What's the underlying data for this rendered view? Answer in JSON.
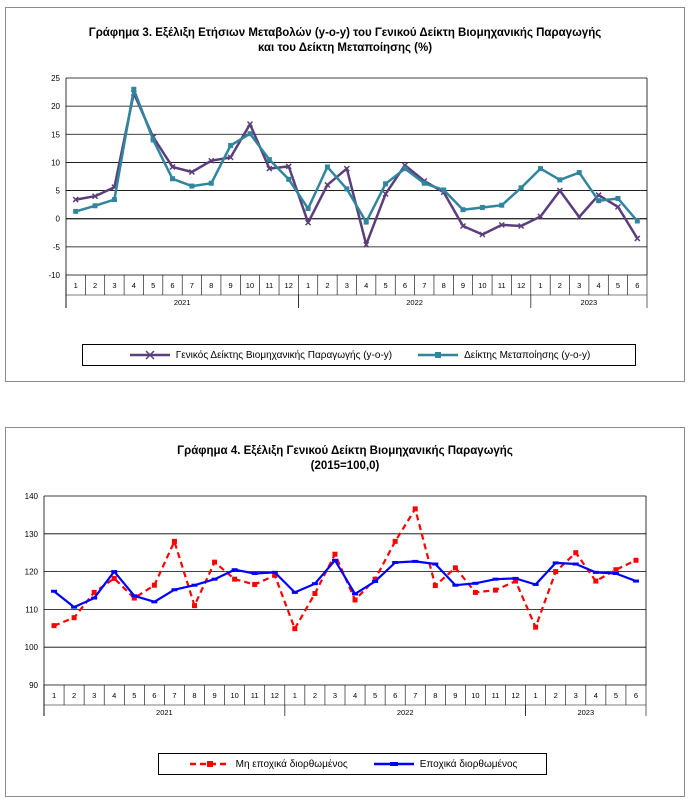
{
  "chart_data": [
    {
      "type": "line",
      "title": [
        "Γράφημα 3. Εξέλιξη Ετήσιων Μεταβολών (y-o-y) του Γενικού Δείκτη Βιομηχανικής Παραγωγής",
        "και του Δείκτη Μεταποίησης (%)"
      ],
      "categories": [
        "1",
        "2",
        "3",
        "4",
        "5",
        "6",
        "7",
        "8",
        "9",
        "10",
        "11",
        "12",
        "1",
        "2",
        "3",
        "4",
        "5",
        "6",
        "7",
        "8",
        "9",
        "10",
        "11",
        "12",
        "1",
        "2",
        "3",
        "4",
        "5",
        "6"
      ],
      "year_groups": [
        {
          "label": "2021",
          "start": 0,
          "count": 12
        },
        {
          "label": "2022",
          "start": 12,
          "count": 12
        },
        {
          "label": "2023",
          "start": 24,
          "count": 6
        }
      ],
      "ylim": [
        -10,
        25
      ],
      "yticks": [
        -10,
        -5,
        0,
        5,
        10,
        15,
        20,
        25
      ],
      "grid": true,
      "legend_position": "bottom",
      "series": [
        {
          "name": "Γενικός Δείκτης Βιομηχανικής Παραγωγής (y-o-y)",
          "color": "#5b3f7c",
          "marker": "x",
          "values": [
            3.4,
            4.0,
            5.6,
            22.3,
            14.5,
            9.2,
            8.3,
            10.3,
            10.9,
            16.8,
            8.9,
            9.3,
            -0.7,
            6.0,
            8.9,
            -4.6,
            4.4,
            9.5,
            6.7,
            4.7,
            -1.3,
            -2.8,
            -1.1,
            -1.3,
            0.4,
            5.0,
            0.3,
            4.2,
            2.1,
            -3.5
          ]
        },
        {
          "name": "Δείκτης Μεταποίησης (y-o-y)",
          "color": "#31859c",
          "marker": "square",
          "values": [
            1.3,
            2.3,
            3.4,
            23.0,
            14.0,
            7.1,
            5.8,
            6.3,
            13.0,
            15.1,
            10.5,
            7.0,
            1.8,
            9.2,
            5.3,
            -0.6,
            6.2,
            8.9,
            6.3,
            5.1,
            1.6,
            2.0,
            2.4,
            5.5,
            8.9,
            6.9,
            8.2,
            3.2,
            3.6,
            -0.4
          ]
        }
      ]
    },
    {
      "type": "line",
      "title": [
        "Γράφημα 4. Εξέλιξη Γενικού Δείκτη Βιομηχανικής Παραγωγής",
        "(2015=100,0)"
      ],
      "categories": [
        "1",
        "2",
        "3",
        "4",
        "5",
        "6",
        "7",
        "8",
        "9",
        "10",
        "11",
        "12",
        "1",
        "2",
        "3",
        "4",
        "5",
        "6",
        "7",
        "8",
        "9",
        "10",
        "11",
        "12",
        "1",
        "2",
        "3",
        "4",
        "5",
        "6"
      ],
      "year_groups": [
        {
          "label": "2021",
          "start": 0,
          "count": 12
        },
        {
          "label": "2022",
          "start": 12,
          "count": 12
        },
        {
          "label": "2023",
          "start": 24,
          "count": 6
        }
      ],
      "ylim": [
        90,
        140
      ],
      "yticks": [
        90,
        100,
        110,
        120,
        130,
        140
      ],
      "grid": true,
      "legend_position": "bottom",
      "series": [
        {
          "name": "Μη εποχικά διορθωμένος",
          "color": "#ff0000",
          "dashed": true,
          "marker": "square",
          "values": [
            105.7,
            107.8,
            114.5,
            118.2,
            113.0,
            116.4,
            128.0,
            111.0,
            122.5,
            118.0,
            116.6,
            119.0,
            104.9,
            114.2,
            124.6,
            112.5,
            118.0,
            128.0,
            136.6,
            116.3,
            121.0,
            114.5,
            115.1,
            117.5,
            105.3,
            120.0,
            125.0,
            117.5,
            120.5,
            123.0
          ]
        },
        {
          "name": "Εποχικά διορθωμένος",
          "color": "#0000ff",
          "dashed": false,
          "marker": "line",
          "values": [
            114.8,
            110.6,
            113.0,
            120.0,
            113.6,
            112.0,
            115.2,
            116.4,
            118.0,
            120.5,
            119.5,
            119.8,
            114.5,
            116.8,
            123.0,
            114.1,
            117.4,
            122.4,
            122.7,
            122.0,
            116.4,
            116.9,
            118.0,
            118.2,
            116.6,
            122.3,
            122.0,
            119.8,
            119.5,
            117.5
          ]
        }
      ]
    }
  ]
}
